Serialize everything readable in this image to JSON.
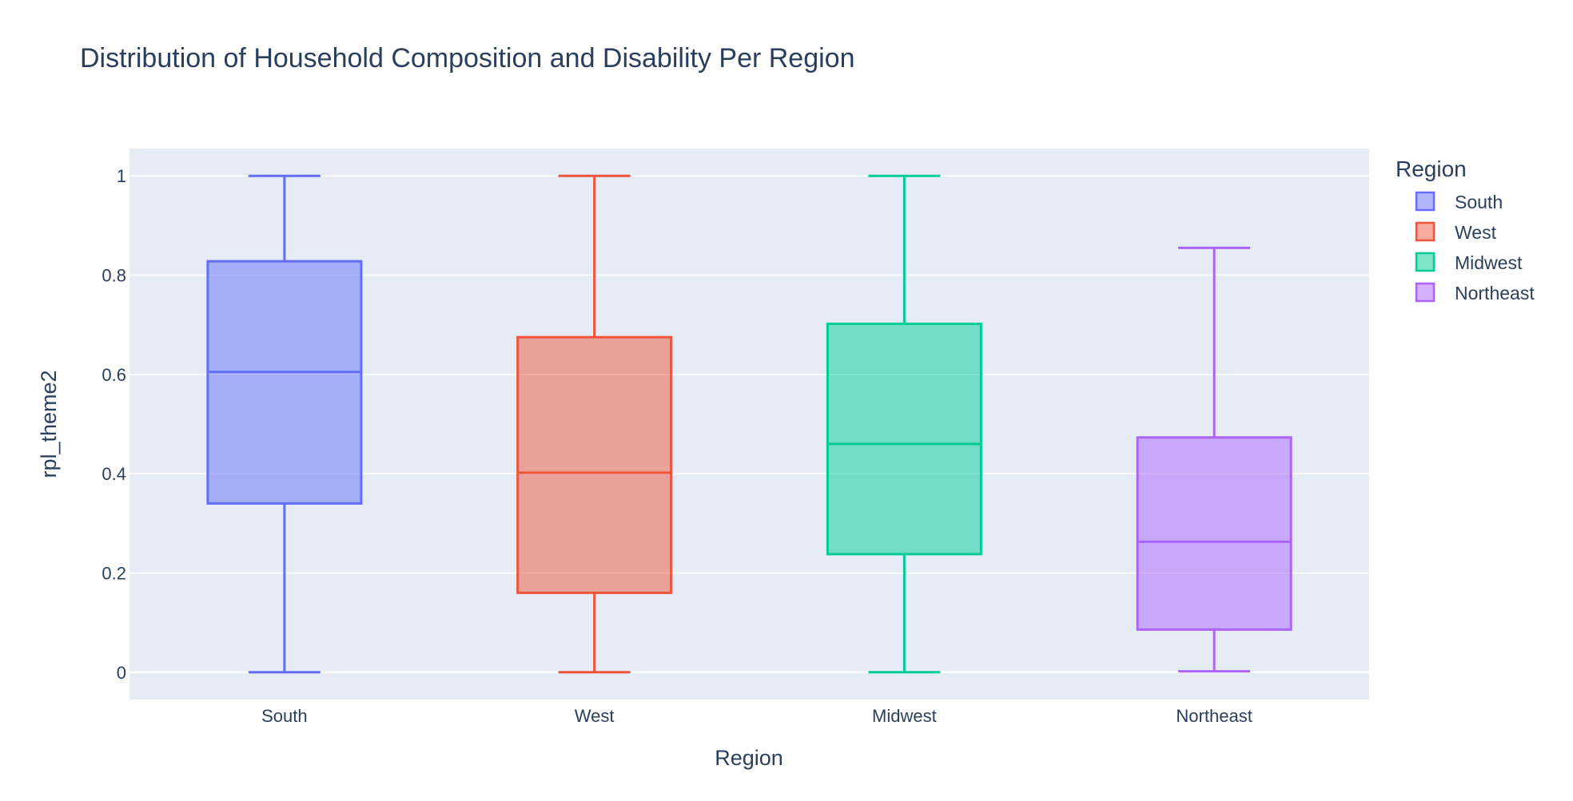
{
  "chart_data": {
    "type": "box",
    "title": "Distribution of Household Composition and Disability Per Region",
    "xlabel": "Region",
    "ylabel": "rpl_theme2",
    "ylim": [
      -0.055,
      1.055
    ],
    "yticks": [
      0,
      0.2,
      0.4,
      0.6,
      0.8,
      1
    ],
    "ytick_labels": [
      "0",
      "0.2",
      "0.4",
      "0.6",
      "0.8",
      "1"
    ],
    "grid": true,
    "legend": {
      "title": "Region",
      "placement": "right"
    },
    "categories": [
      "South",
      "West",
      "Midwest",
      "Northeast"
    ],
    "series": [
      {
        "name": "South",
        "color": "#636efa",
        "fill": "rgba(99,110,250,0.5)",
        "min": 0.0,
        "q1": 0.34,
        "median": 0.605,
        "q3": 0.828,
        "max": 1.0
      },
      {
        "name": "West",
        "color": "#ef553b",
        "fill": "rgba(239,85,59,0.5)",
        "min": 0.0,
        "q1": 0.16,
        "median": 0.402,
        "q3": 0.675,
        "max": 1.0
      },
      {
        "name": "Midwest",
        "color": "#00cc96",
        "fill": "rgba(0,204,150,0.5)",
        "min": 0.0,
        "q1": 0.238,
        "median": 0.46,
        "q3": 0.702,
        "max": 1.0
      },
      {
        "name": "Northeast",
        "color": "#ab63fa",
        "fill": "rgba(171,99,250,0.5)",
        "min": 0.002,
        "q1": 0.086,
        "median": 0.263,
        "q3": 0.473,
        "max": 0.855
      }
    ]
  }
}
